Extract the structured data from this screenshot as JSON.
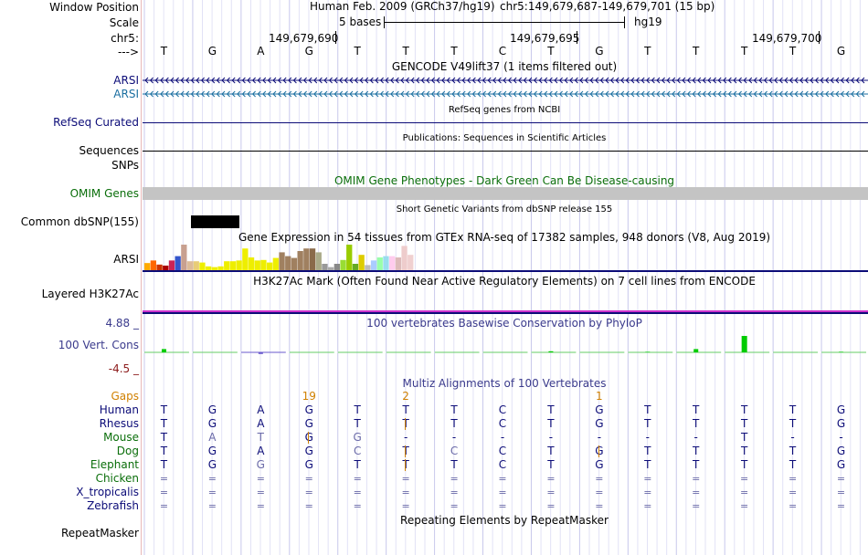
{
  "header": {
    "window_position_label": "Window Position",
    "scale_label": "Scale",
    "chr_label": "chr5:",
    "arrow_label": "--->",
    "assembly": "Human Feb. 2009 (GRCh37/hg19)",
    "position": "chr5:149,679,687-149,679,701 (15 bp)",
    "scale_text": "5 bases",
    "db": "hg19",
    "coords": [
      "149,679,690",
      "149,679,695",
      "149,679,700"
    ],
    "bases": [
      "T",
      "G",
      "A",
      "G",
      "T",
      "T",
      "T",
      "C",
      "T",
      "G",
      "T",
      "T",
      "T",
      "T",
      "G"
    ]
  },
  "gencode": {
    "title": "GENCODE V49lift37 (1 items filtered out)",
    "tracks": [
      {
        "label": "ARSI",
        "color": "#0c0c78"
      },
      {
        "label": "ARSI",
        "color": "#1a6ea0"
      }
    ]
  },
  "refseq": {
    "label": "RefSeq Curated",
    "title": "RefSeq genes from NCBI",
    "color": "#0c0c78"
  },
  "sequences": {
    "label": "Sequences",
    "title": "Publications: Sequences in Scientific Articles"
  },
  "snps": {
    "label": "SNPs"
  },
  "omim": {
    "label": "OMIM Genes",
    "title": "OMIM Gene Phenotypes - Dark Green Can Be Disease-causing",
    "color": "#0a6e0a"
  },
  "dbsnp": {
    "label": "Common dbSNP(155)",
    "title": "Short Genetic Variants from dbSNP release 155"
  },
  "gtex": {
    "title": "Gene Expression in 54 tissues from GTEx RNA-seq of 17382 samples, 948 donors (V8, Aug 2019)",
    "label": "ARSI",
    "bars": [
      {
        "value": 0.28,
        "color": "#ffaa00"
      },
      {
        "value": 0.38,
        "color": "#ff6600"
      },
      {
        "value": 0.22,
        "color": "#cc3300"
      },
      {
        "value": 0.18,
        "color": "#aa0000"
      },
      {
        "value": 0.38,
        "color": "#cc2255"
      },
      {
        "value": 0.55,
        "color": "#3355cc"
      },
      {
        "value": 1.0,
        "color": "#c8a090"
      },
      {
        "value": 0.35,
        "color": "#ddbb99"
      },
      {
        "value": 0.35,
        "color": "#e8cc77"
      },
      {
        "value": 0.3,
        "color": "#eeee00"
      },
      {
        "value": 0.15,
        "color": "#eeee00"
      },
      {
        "value": 0.12,
        "color": "#eeee00"
      },
      {
        "value": 0.15,
        "color": "#eeee00"
      },
      {
        "value": 0.35,
        "color": "#eeee00"
      },
      {
        "value": 0.35,
        "color": "#eeee00"
      },
      {
        "value": 0.38,
        "color": "#eeee00"
      },
      {
        "value": 0.85,
        "color": "#eeee00"
      },
      {
        "value": 0.5,
        "color": "#eeee00"
      },
      {
        "value": 0.38,
        "color": "#eeee00"
      },
      {
        "value": 0.4,
        "color": "#eeee00"
      },
      {
        "value": 0.3,
        "color": "#eeee00"
      },
      {
        "value": 0.48,
        "color": "#eeee00"
      },
      {
        "value": 0.7,
        "color": "#a08060"
      },
      {
        "value": 0.55,
        "color": "#a08060"
      },
      {
        "value": 0.48,
        "color": "#a08060"
      },
      {
        "value": 0.75,
        "color": "#a08060"
      },
      {
        "value": 0.85,
        "color": "#a08060"
      },
      {
        "value": 0.85,
        "color": "#8a6a4a"
      },
      {
        "value": 0.7,
        "color": "#aaaa88"
      },
      {
        "value": 0.25,
        "color": "#999999"
      },
      {
        "value": 0.12,
        "color": "#aaaaaa"
      },
      {
        "value": 0.25,
        "color": "#888888"
      },
      {
        "value": 0.4,
        "color": "#99dd33"
      },
      {
        "value": 1.0,
        "color": "#99cc00"
      },
      {
        "value": 0.25,
        "color": "#66aa22"
      },
      {
        "value": 0.6,
        "color": "#ddcc00"
      },
      {
        "value": 0.2,
        "color": "#bbbbbb"
      },
      {
        "value": 0.38,
        "color": "#aaccff"
      },
      {
        "value": 0.5,
        "color": "#99ffaa"
      },
      {
        "value": 0.55,
        "color": "#99ddee"
      },
      {
        "value": 0.55,
        "color": "#ffccee"
      },
      {
        "value": 0.5,
        "color": "#ddbbbb"
      },
      {
        "value": 0.95,
        "color": "#eecccc"
      },
      {
        "value": 0.6,
        "color": "#f0d0d0"
      }
    ]
  },
  "h3k27ac": {
    "title": "H3K27Ac Mark (Often Found Near Active Regulatory Elements) on 7 cell lines from ENCODE",
    "label": "Layered H3K27Ac"
  },
  "phylop": {
    "title": "100 vertebrates Basewise Conservation by PhyloP",
    "label": "100 Vert. Cons",
    "max": "4.88 _",
    "min": "-4.5 _",
    "max_color": "#3a3a8c",
    "min_color": "#8c1a1a",
    "values": [
      0.6,
      0,
      -0.3,
      0,
      0,
      0,
      0,
      0,
      0.2,
      0,
      0.1,
      0.6,
      3.0,
      0,
      0.1
    ]
  },
  "multiz": {
    "title": "Multiz Alignments of 100 Vertebrates",
    "gaps_label": "Gaps",
    "gaps_color": "#d08000",
    "gap_counts": [
      {
        "text": "19",
        "at": 3.5
      },
      {
        "text": "2",
        "at": 5.5
      },
      {
        "text": "1",
        "at": 9.5
      }
    ],
    "species": [
      {
        "name": "Human",
        "color": "#0c0c78",
        "seq": "TGAGTTTCTGTTTTG"
      },
      {
        "name": "Rhesus",
        "color": "#0c0c78",
        "seq": "TGAGTTTCTGTTTTG"
      },
      {
        "name": "Mouse",
        "color": "#0a6e0a",
        "seq": "TATGG-------T--"
      },
      {
        "name": "Dog",
        "color": "#0a6e0a",
        "seq": "TGAGCTCCTGTTTTG"
      },
      {
        "name": "Elephant",
        "color": "#0a6e0a",
        "seq": "TGGGTTTCTGTTTTG"
      },
      {
        "name": "Chicken",
        "color": "#0a6e0a",
        "seq": "==============="
      },
      {
        "name": "X_tropicalis",
        "color": "#0c0c78",
        "seq": "==============="
      },
      {
        "name": "Zebrafish",
        "color": "#0c0c78",
        "seq": "==============="
      }
    ]
  },
  "repeatmasker": {
    "label": "RepeatMasker",
    "title": "Repeating Elements by RepeatMasker"
  }
}
